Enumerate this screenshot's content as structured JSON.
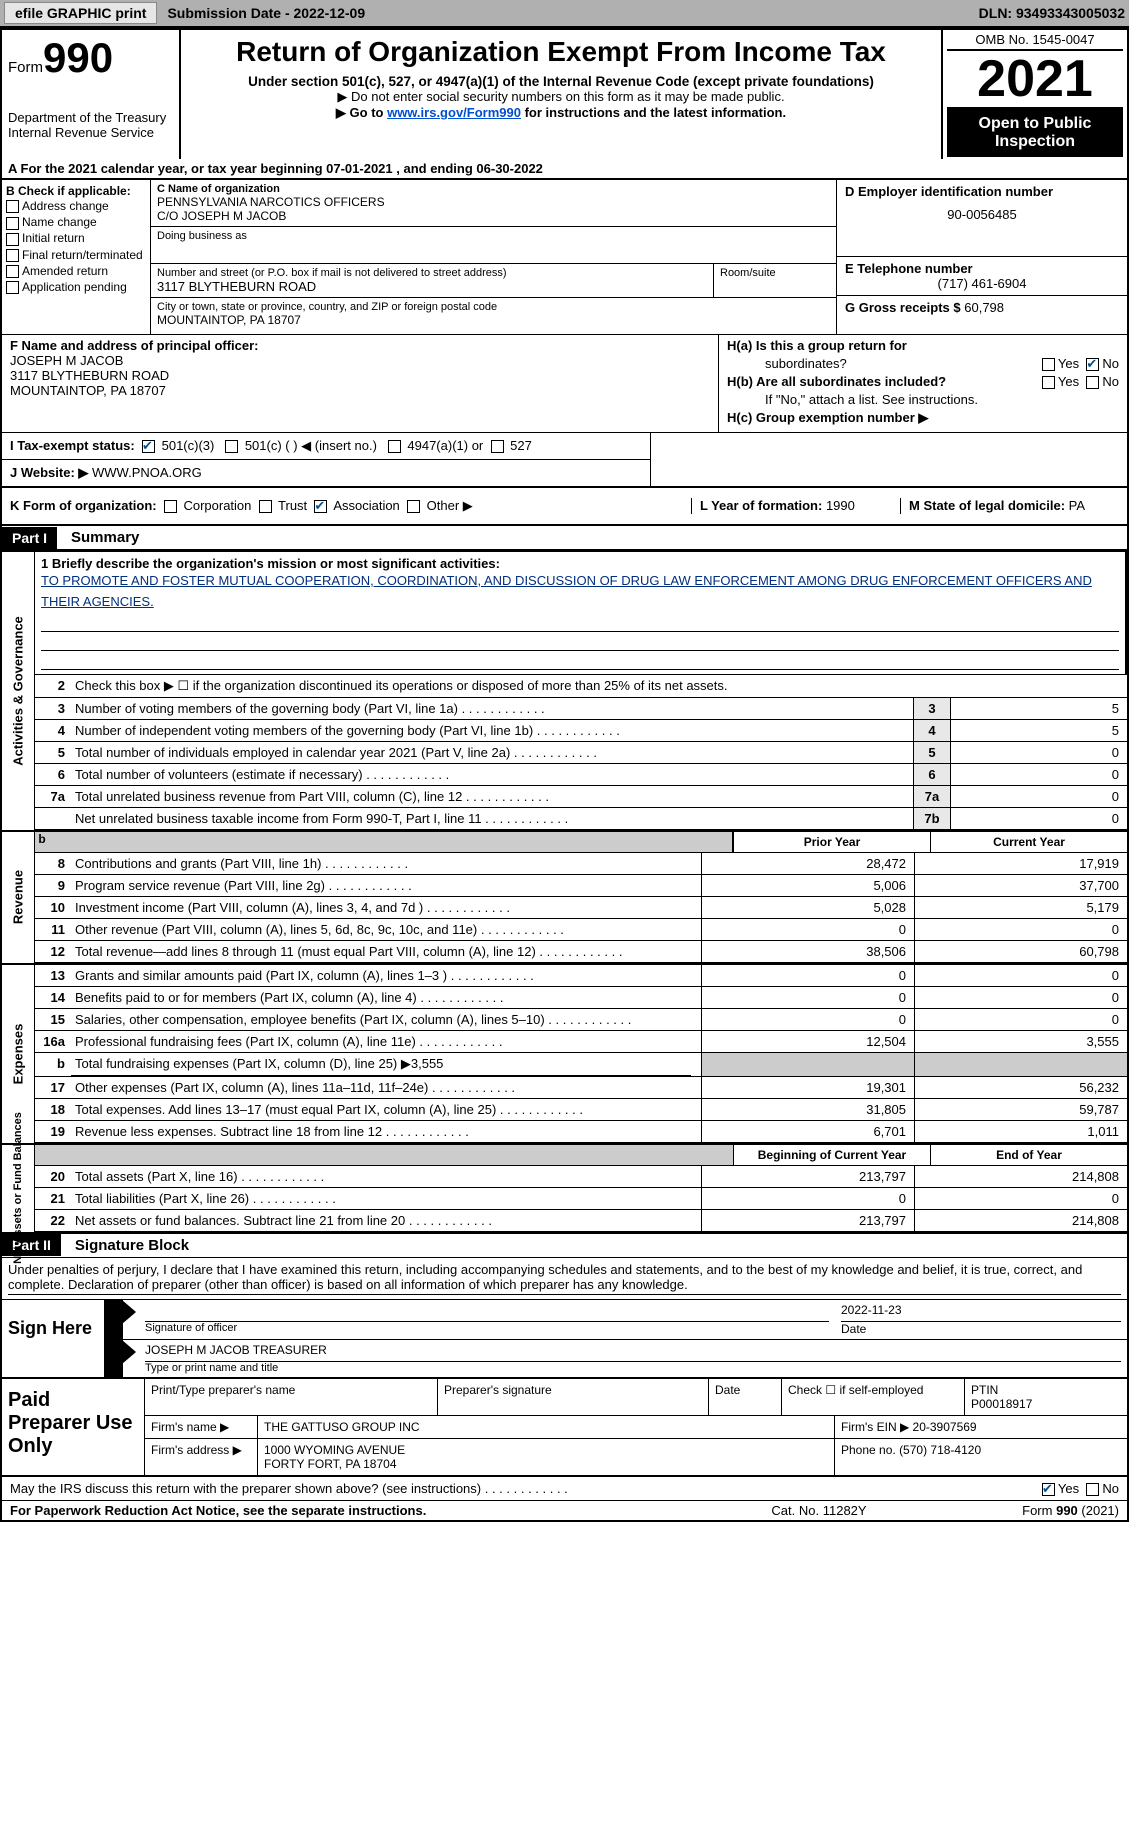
{
  "topbar": {
    "efile": "efile GRAPHIC print",
    "submission_label": "Submission Date - 2022-12-09",
    "dln": "DLN: 93493343005032"
  },
  "header": {
    "form_word": "Form",
    "form_num": "990",
    "dept": "Department of the Treasury",
    "irs": "Internal Revenue Service",
    "title": "Return of Organization Exempt From Income Tax",
    "subtitle": "Under section 501(c), 527, or 4947(a)(1) of the Internal Revenue Code (except private foundations)",
    "note1": "▶ Do not enter social security numbers on this form as it may be made public.",
    "note2_pre": "▶ Go to ",
    "note2_link": "www.irs.gov/Form990",
    "note2_post": " for instructions and the latest information.",
    "omb": "OMB No. 1545-0047",
    "year": "2021",
    "open_pub": "Open to Public Inspection"
  },
  "row_a": "A For the 2021 calendar year, or tax year beginning 07-01-2021   , and ending 06-30-2022",
  "col_b": {
    "head": "B Check if applicable:",
    "items": [
      "Address change",
      "Name change",
      "Initial return",
      "Final return/terminated",
      "Amended return",
      "Application pending"
    ]
  },
  "col_c": {
    "name_label": "C Name of organization",
    "name": "PENNSYLVANIA NARCOTICS OFFICERS",
    "co": "C/O JOSEPH M JACOB",
    "dba_label": "Doing business as",
    "street_label": "Number and street (or P.O. box if mail is not delivered to street address)",
    "room_label": "Room/suite",
    "street": "3117 BLYTHEBURN ROAD",
    "city_label": "City or town, state or province, country, and ZIP or foreign postal code",
    "city": "MOUNTAINTOP, PA  18707"
  },
  "col_de": {
    "d_label": "D Employer identification number",
    "d_val": "90-0056485",
    "e_label": "E Telephone number",
    "e_val": "(717) 461-6904",
    "g_label": "G Gross receipts $",
    "g_val": "60,798"
  },
  "f": {
    "label": "F Name and address of principal officer:",
    "name": "JOSEPH M JACOB",
    "street": "3117 BLYTHEBURN ROAD",
    "city": "MOUNTAINTOP, PA  18707"
  },
  "h": {
    "a_label": "H(a)  Is this a group return for",
    "a_label2": "subordinates?",
    "a_yes": "Yes",
    "a_no": "No",
    "b_label": "H(b)  Are all subordinates included?",
    "b_yes": "Yes",
    "b_no": "No",
    "note": "If \"No,\" attach a list. See instructions.",
    "c_label": "H(c)  Group exemption number ▶"
  },
  "i": {
    "label": "I   Tax-exempt status:",
    "opt1": "501(c)(3)",
    "opt2": "501(c) (  ) ◀ (insert no.)",
    "opt3": "4947(a)(1) or",
    "opt4": "527"
  },
  "j": {
    "label": "J   Website: ▶",
    "val": "WWW.PNOA.ORG"
  },
  "k": {
    "label": "K Form of organization:",
    "corp": "Corporation",
    "trust": "Trust",
    "assoc": "Association",
    "other": "Other ▶"
  },
  "l": {
    "label": "L Year of formation:",
    "val": "1990"
  },
  "m": {
    "label": "M State of legal domicile:",
    "val": "PA"
  },
  "parts": {
    "p1": "Part I",
    "p1t": "Summary",
    "p2": "Part II",
    "p2t": "Signature Block"
  },
  "vlabels": {
    "ag": "Activities & Governance",
    "rev": "Revenue",
    "exp": "Expenses",
    "na": "Net Assets or\nFund Balances"
  },
  "line1": {
    "label": "1   Briefly describe the organization's mission or most significant activities:",
    "mission": "TO PROMOTE AND FOSTER MUTUAL COOPERATION, COORDINATION, AND DISCUSSION OF DRUG LAW ENFORCEMENT AMONG DRUG ENFORCEMENT OFFICERS AND THEIR AGENCIES."
  },
  "line2": "Check this box ▶ ☐ if the organization discontinued its operations or disposed of more than 25% of its net assets.",
  "lines_single": [
    {
      "n": "3",
      "d": "Number of voting members of the governing body (Part VI, line 1a)",
      "rn": "3",
      "v": "5"
    },
    {
      "n": "4",
      "d": "Number of independent voting members of the governing body (Part VI, line 1b)",
      "rn": "4",
      "v": "5"
    },
    {
      "n": "5",
      "d": "Total number of individuals employed in calendar year 2021 (Part V, line 2a)",
      "rn": "5",
      "v": "0"
    },
    {
      "n": "6",
      "d": "Total number of volunteers (estimate if necessary)",
      "rn": "6",
      "v": "0"
    },
    {
      "n": "7a",
      "d": "Total unrelated business revenue from Part VIII, column (C), line 12",
      "rn": "7a",
      "v": "0"
    },
    {
      "n": "",
      "d": "Net unrelated business taxable income from Form 990-T, Part I, line 11",
      "rn": "7b",
      "v": "0"
    }
  ],
  "col_heads": {
    "prior": "Prior Year",
    "current": "Current Year"
  },
  "lines_rev": [
    {
      "n": "8",
      "d": "Contributions and grants (Part VIII, line 1h)",
      "p": "28,472",
      "c": "17,919"
    },
    {
      "n": "9",
      "d": "Program service revenue (Part VIII, line 2g)",
      "p": "5,006",
      "c": "37,700"
    },
    {
      "n": "10",
      "d": "Investment income (Part VIII, column (A), lines 3, 4, and 7d )",
      "p": "5,028",
      "c": "5,179"
    },
    {
      "n": "11",
      "d": "Other revenue (Part VIII, column (A), lines 5, 6d, 8c, 9c, 10c, and 11e)",
      "p": "0",
      "c": "0"
    },
    {
      "n": "12",
      "d": "Total revenue—add lines 8 through 11 (must equal Part VIII, column (A), line 12)",
      "p": "38,506",
      "c": "60,798"
    }
  ],
  "lines_exp": [
    {
      "n": "13",
      "d": "Grants and similar amounts paid (Part IX, column (A), lines 1–3 )",
      "p": "0",
      "c": "0"
    },
    {
      "n": "14",
      "d": "Benefits paid to or for members (Part IX, column (A), line 4)",
      "p": "0",
      "c": "0"
    },
    {
      "n": "15",
      "d": "Salaries, other compensation, employee benefits (Part IX, column (A), lines 5–10)",
      "p": "0",
      "c": "0"
    },
    {
      "n": "16a",
      "d": "Professional fundraising fees (Part IX, column (A), line 11e)",
      "p": "12,504",
      "c": "3,555"
    },
    {
      "n": "b",
      "d": "Total fundraising expenses (Part IX, column (D), line 25) ▶3,555",
      "p": "",
      "c": "",
      "shade": true
    },
    {
      "n": "17",
      "d": "Other expenses (Part IX, column (A), lines 11a–11d, 11f–24e)",
      "p": "19,301",
      "c": "56,232"
    },
    {
      "n": "18",
      "d": "Total expenses. Add lines 13–17 (must equal Part IX, column (A), line 25)",
      "p": "31,805",
      "c": "59,787"
    },
    {
      "n": "19",
      "d": "Revenue less expenses. Subtract line 18 from line 12",
      "p": "6,701",
      "c": "1,011"
    }
  ],
  "col_heads2": {
    "begin": "Beginning of Current Year",
    "end": "End of Year"
  },
  "lines_na": [
    {
      "n": "20",
      "d": "Total assets (Part X, line 16)",
      "p": "213,797",
      "c": "214,808"
    },
    {
      "n": "21",
      "d": "Total liabilities (Part X, line 26)",
      "p": "0",
      "c": "0"
    },
    {
      "n": "22",
      "d": "Net assets or fund balances. Subtract line 21 from line 20",
      "p": "213,797",
      "c": "214,808"
    }
  ],
  "sig_intro": "Under penalties of perjury, I declare that I have examined this return, including accompanying schedules and statements, and to the best of my knowledge and belief, it is true, correct, and complete. Declaration of preparer (other than officer) is based on all information of which preparer has any knowledge.",
  "sign": {
    "here": "Sign Here",
    "sig_label": "Signature of officer",
    "date_val": "2022-11-23",
    "date_label": "Date",
    "name_val": "JOSEPH M JACOB  TREASURER",
    "name_label": "Type or print name and title"
  },
  "prep": {
    "title": "Paid Preparer Use Only",
    "pt_name_label": "Print/Type preparer's name",
    "sig_label": "Preparer's signature",
    "date_label": "Date",
    "check_label": "Check ☐ if self-employed",
    "ptin_label": "PTIN",
    "ptin_val": "P00018917",
    "firm_name_l": "Firm's name   ▶",
    "firm_name": "THE GATTUSO GROUP INC",
    "firm_ein_l": "Firm's EIN ▶",
    "firm_ein": "20-3907569",
    "firm_addr_l": "Firm's address ▶",
    "firm_addr1": "1000 WYOMING AVENUE",
    "firm_addr2": "FORTY FORT, PA  18704",
    "phone_l": "Phone no.",
    "phone": "(570) 718-4120"
  },
  "discuss": {
    "q": "May the IRS discuss this return with the preparer shown above? (see instructions)",
    "yes": "Yes",
    "no": "No"
  },
  "footer": {
    "left": "For Paperwork Reduction Act Notice, see the separate instructions.",
    "mid": "Cat. No. 11282Y",
    "right": "Form 990 (2021)"
  }
}
